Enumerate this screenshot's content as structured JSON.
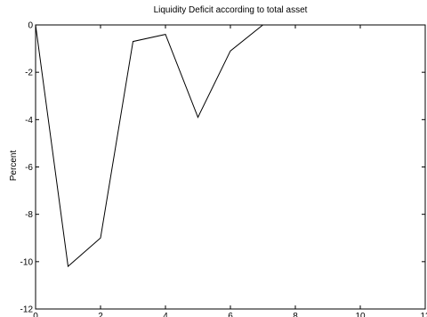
{
  "chart_data": {
    "type": "line",
    "title": "Liquidity Deficit according to total asset",
    "xlabel": "",
    "ylabel": "Percent",
    "xlim": [
      0,
      12
    ],
    "ylim": [
      -12,
      0
    ],
    "xticks": [
      0,
      2,
      4,
      6,
      8,
      10,
      12
    ],
    "yticks": [
      0,
      -2,
      -4,
      -6,
      -8,
      -10,
      -12
    ],
    "grid": false,
    "series": [
      {
        "x": [
          0,
          1,
          2,
          3,
          4,
          5,
          6,
          7,
          7.3
        ],
        "y": [
          0,
          -10.2,
          -9.0,
          -0.7,
          -0.4,
          -3.9,
          -1.1,
          0,
          0
        ],
        "color": "#000000"
      }
    ]
  }
}
